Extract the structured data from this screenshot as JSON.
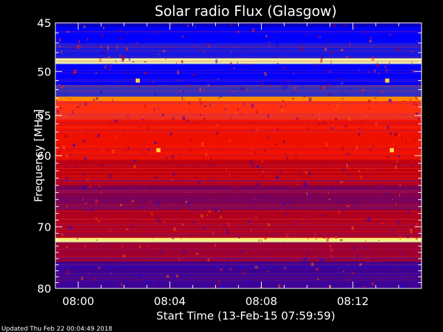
{
  "chart_data": {
    "type": "heatmap",
    "title": "Solar radio Flux (Glasgow)",
    "ylabel": "Frequency [MHz]",
    "xlabel": "Start Time (13-Feb-15 07:59:59)",
    "y_scale": "log",
    "ylim": [
      45,
      80
    ],
    "y_ticks": [
      45,
      50,
      55,
      60,
      70,
      80
    ],
    "y_tick_labels": [
      "45",
      "50",
      "55",
      "60",
      "70",
      "80"
    ],
    "xlim": [
      "07:59:59",
      "08:15:00"
    ],
    "x_ticks": [
      "08:00",
      "08:04",
      "08:08",
      "08:12"
    ],
    "x_tick_labels": [
      "08:00",
      "08:04",
      "08:08",
      "08:12"
    ],
    "colormap": [
      "#000060",
      "#0000ff",
      "#c00000",
      "#ff2000",
      "#ff9000",
      "#ffff80"
    ],
    "bands": [
      {
        "from": 45.0,
        "to": 45.4,
        "color": "#0000c8"
      },
      {
        "from": 45.4,
        "to": 47.0,
        "color": "#0000ff"
      },
      {
        "from": 47.0,
        "to": 48.6,
        "color": "#1818e0"
      },
      {
        "from": 48.6,
        "to": 49.2,
        "color": "#ffffa0"
      },
      {
        "from": 49.2,
        "to": 51.5,
        "color": "#0000ff"
      },
      {
        "from": 51.5,
        "to": 52.8,
        "color": "#3030c0"
      },
      {
        "from": 52.8,
        "to": 53.3,
        "color": "#ff9000"
      },
      {
        "from": 53.3,
        "to": 55.5,
        "color": "#ff3010"
      },
      {
        "from": 55.5,
        "to": 60.5,
        "color": "#f01000"
      },
      {
        "from": 60.5,
        "to": 64.0,
        "color": "#c00010"
      },
      {
        "from": 64.0,
        "to": 67.5,
        "color": "#800050"
      },
      {
        "from": 67.5,
        "to": 71.7,
        "color": "#b00020"
      },
      {
        "from": 71.7,
        "to": 72.4,
        "color": "#ffff80"
      },
      {
        "from": 72.4,
        "to": 75.5,
        "color": "#a00030"
      },
      {
        "from": 75.5,
        "to": 80.0,
        "color": "#400090"
      }
    ],
    "hot_spots": [
      {
        "time": "08:03.5",
        "freq": 59.3
      },
      {
        "time": "08:13.7",
        "freq": 59.3
      },
      {
        "time": "08:02.6",
        "freq": 51.0
      },
      {
        "time": "08:13.5",
        "freq": 51.0
      }
    ]
  },
  "footer": {
    "updated": "Updated Thu Feb 22 00:04:49 2018"
  }
}
